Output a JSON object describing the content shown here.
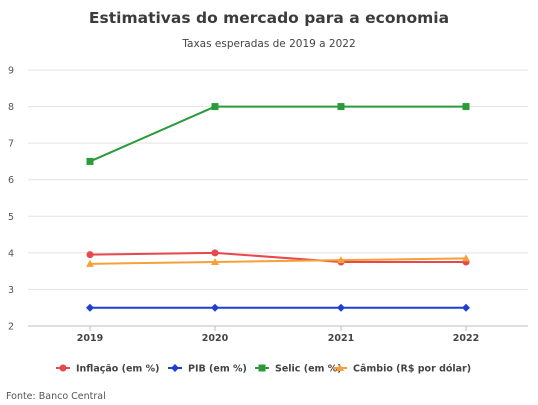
{
  "chart_data": {
    "type": "line",
    "title": "Estimativas do mercado para a economia",
    "subtitle": "Taxas esperadas de 2019 a 2022",
    "categories": [
      "2019",
      "2020",
      "2021",
      "2022"
    ],
    "ylim": [
      2,
      9
    ],
    "yticks": [
      "2",
      "3",
      "4",
      "5",
      "6",
      "7",
      "8",
      "9"
    ],
    "grid": true,
    "legend_position": "bottom",
    "series": [
      {
        "name": "Inflação (em %)",
        "values": [
          3.95,
          4.0,
          3.75,
          3.75
        ],
        "color": "#e8474c",
        "marker": "circle"
      },
      {
        "name": "PIB (em %)",
        "values": [
          2.5,
          2.5,
          2.5,
          2.5
        ],
        "color": "#1f3fd1",
        "marker": "diamond"
      },
      {
        "name": "Selic (em %)",
        "values": [
          6.5,
          8.0,
          8.0,
          8.0
        ],
        "color": "#2a9a3a",
        "marker": "square"
      },
      {
        "name": "Câmbio (R$ por dólar)",
        "values": [
          3.7,
          3.75,
          3.8,
          3.85
        ],
        "color": "#f5a03a",
        "marker": "triangle"
      }
    ]
  },
  "source": "Fonte: Banco Central"
}
